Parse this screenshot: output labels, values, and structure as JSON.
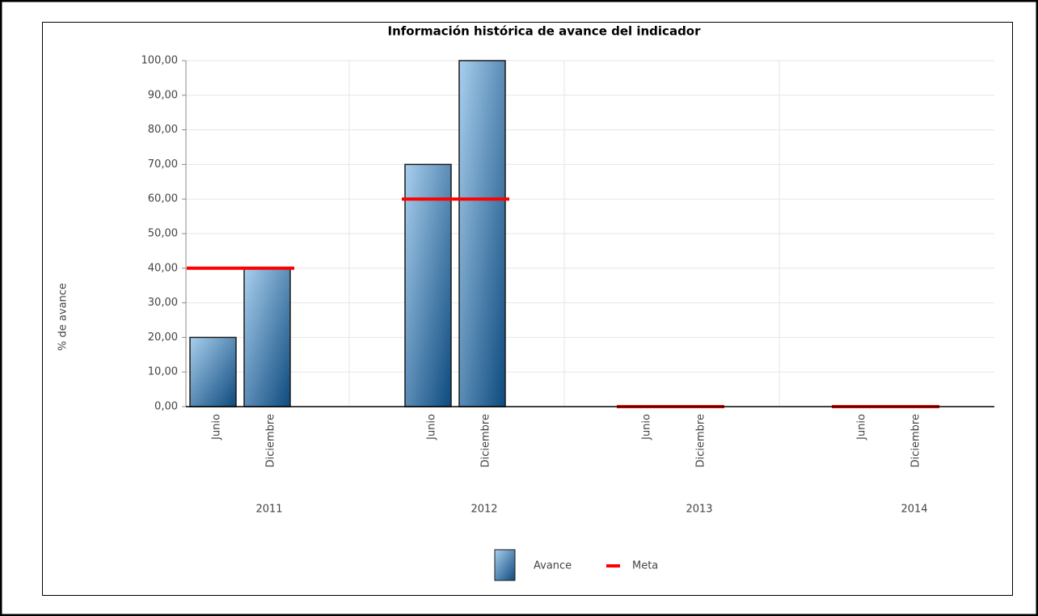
{
  "chart_data": {
    "type": "bar",
    "title": "Información histórica de avance del indicador",
    "y_label": "% de avance",
    "categories": [
      "Junio",
      "Diciembre",
      "Junio",
      "Diciembre",
      "Junio",
      "Diciembre",
      "Junio",
      "Diciembre"
    ],
    "groups": [
      "2011",
      "2012",
      "2013",
      "2014"
    ],
    "series": [
      {
        "name": "Avance",
        "type": "bar",
        "color": "#0d4a7e",
        "values": [
          20,
          40,
          70,
          100,
          null,
          null,
          null,
          null
        ]
      },
      {
        "name": "Meta",
        "type": "line",
        "color": "#ff0000",
        "values": [
          40,
          40,
          60,
          60,
          0,
          0,
          0,
          0
        ]
      }
    ],
    "ylim": [
      0,
      100
    ],
    "yticks": [
      {
        "value": 0,
        "label": "0,00"
      },
      {
        "value": 10,
        "label": "10,00"
      },
      {
        "value": 20,
        "label": "20,00"
      },
      {
        "value": 30,
        "label": "30,00"
      },
      {
        "value": 40,
        "label": "40,00"
      },
      {
        "value": 50,
        "label": "50,00"
      },
      {
        "value": 60,
        "label": "60,00"
      },
      {
        "value": 70,
        "label": "70,00"
      },
      {
        "value": 80,
        "label": "80,00"
      },
      {
        "value": 90,
        "label": "90,00"
      },
      {
        "value": 100,
        "label": "100,00"
      }
    ],
    "grid": true
  }
}
